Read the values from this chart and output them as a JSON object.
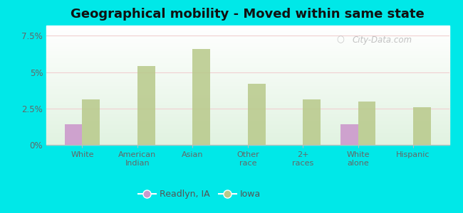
{
  "title": "Geographical mobility - Moved within same state",
  "categories": [
    "White",
    "American\nIndian",
    "Asian",
    "Other\nrace",
    "2+\nraces",
    "White\nalone",
    "Hispanic"
  ],
  "readlyn_values": [
    1.4,
    0,
    0,
    0,
    0,
    1.4,
    0
  ],
  "iowa_values": [
    3.1,
    5.4,
    6.6,
    4.2,
    3.1,
    3.0,
    2.6
  ],
  "readlyn_color": "#cc99cc",
  "iowa_color": "#b8c98a",
  "background_outer": "#00e8e8",
  "background_inner_top": "#f5faf5",
  "background_inner_bottom": "#d0ebd0",
  "title_fontsize": 13,
  "ylim": [
    0,
    8.2
  ],
  "yticks": [
    0,
    2.5,
    5.0,
    7.5
  ],
  "ytick_labels": [
    "0%",
    "2.5%",
    "5%",
    "7.5%"
  ],
  "legend_readlyn": "Readlyn, IA",
  "legend_iowa": "Iowa",
  "bar_width": 0.32,
  "watermark": "City-Data.com"
}
